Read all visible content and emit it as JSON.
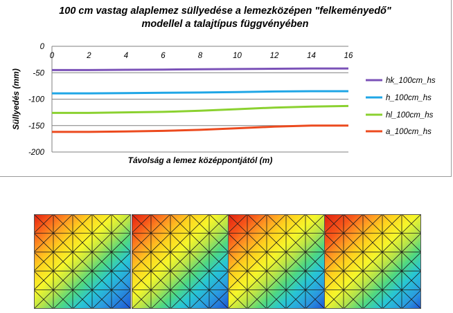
{
  "chart_data": {
    "type": "line",
    "title_line1": "100 cm vastag alaplemez süllyedése a lemezközépen \"felkeményedő\"",
    "title_line2": "modellel a talajtípus függvényében",
    "xlabel": "Távolság a lemez középpontjától (m)",
    "ylabel": "Süllyedés (mm)",
    "x_ticks": [
      "0",
      "2",
      "4",
      "6",
      "8",
      "10",
      "12",
      "14",
      "16"
    ],
    "y_ticks": [
      "0",
      "-50",
      "-100",
      "-150",
      "-200"
    ],
    "xlim": [
      0,
      16
    ],
    "ylim": [
      -200,
      0
    ],
    "grid": "horizontal",
    "legend_position": "right",
    "x": [
      0,
      2,
      4,
      6,
      8,
      10,
      12,
      14,
      16
    ],
    "series": [
      {
        "name": "hk_100cm_hs",
        "color": "#7b52b8",
        "values": [
          -45,
          -45,
          -44.5,
          -44,
          -43.5,
          -43,
          -42.5,
          -42,
          -42
        ]
      },
      {
        "name": "h_100cm_hs",
        "color": "#1fa6e6",
        "values": [
          -89,
          -89,
          -88.5,
          -88,
          -87.5,
          -86.5,
          -85.5,
          -85,
          -85
        ]
      },
      {
        "name": "hl_100cm_hs",
        "color": "#8bd130",
        "values": [
          -126,
          -126,
          -125,
          -124,
          -122,
          -119,
          -116,
          -114,
          -113
        ]
      },
      {
        "name": "a_100cm_hs",
        "color": "#ec4a1e",
        "values": [
          -162,
          -162,
          -161,
          -160,
          -158,
          -155,
          -152,
          -150,
          -150
        ]
      }
    ]
  },
  "contour_maps": {
    "count": 4,
    "colors": [
      "#e01e10",
      "#f7591a",
      "#ff9a22",
      "#ffd21e",
      "#f6f62a",
      "#b6e44a",
      "#4fd882",
      "#28c6d4",
      "#2a9ae0",
      "#1d54d4"
    ]
  }
}
